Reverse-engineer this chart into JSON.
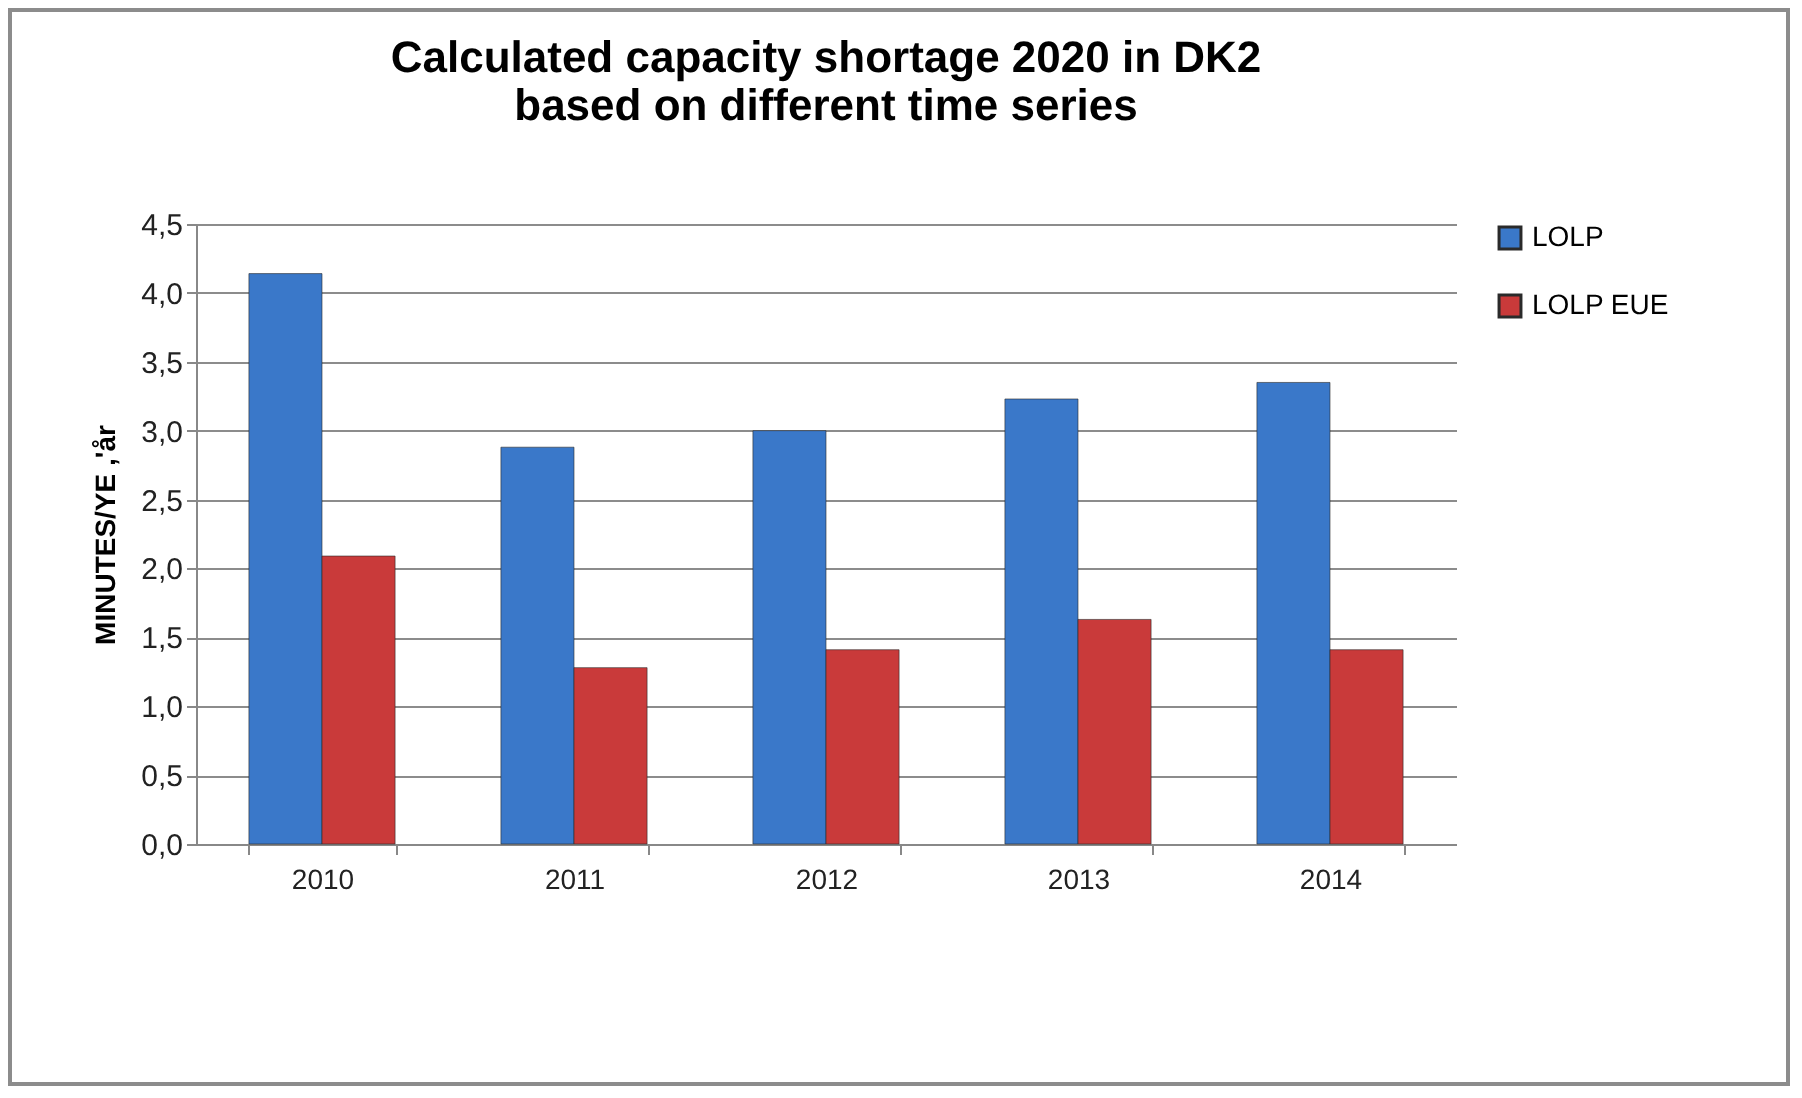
{
  "chart_data": {
    "type": "bar",
    "title": "Calculated capacity shortage 2020 in DK2\nbased on different time series",
    "ylabel": "MINUTES/YE ,'år",
    "categories": [
      "2010",
      "2011",
      "2012",
      "2013",
      "2014"
    ],
    "series": [
      {
        "name": "LOLP",
        "color": "#3a78c9",
        "values": [
          4.14,
          2.88,
          3.0,
          3.23,
          3.35
        ]
      },
      {
        "name": "LOLP EUE",
        "color": "#c93a3a",
        "values": [
          2.09,
          1.28,
          1.41,
          1.63,
          1.41
        ]
      }
    ],
    "ylim": [
      0,
      4.5
    ],
    "yticks": [
      {
        "value": 0,
        "label": "0,0"
      },
      {
        "value": 0.5,
        "label": "0,5"
      },
      {
        "value": 1,
        "label": "1,0"
      },
      {
        "value": 1.5,
        "label": "1,5"
      },
      {
        "value": 2,
        "label": "2,0"
      },
      {
        "value": 2.5,
        "label": "2,5"
      },
      {
        "value": 3,
        "label": "3,0"
      },
      {
        "value": 3.5,
        "label": "3,5"
      },
      {
        "value": 4,
        "label": "4,0"
      },
      {
        "value": 4.5,
        "label": "4,5"
      }
    ],
    "grid": "y",
    "legend": "right"
  }
}
